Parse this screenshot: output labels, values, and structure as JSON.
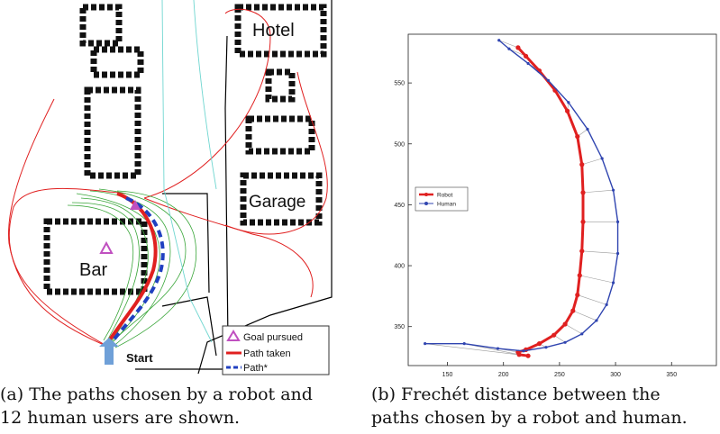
{
  "panel_a": {
    "place_labels": {
      "hotel": "Hotel",
      "garage": "Garage",
      "bar": "Bar",
      "start": "Start"
    },
    "legend": [
      {
        "label": "Goal pursued",
        "color": "#c050c0",
        "marker": "triangle"
      },
      {
        "label": "Path taken",
        "color": "#e02020",
        "marker": "line"
      },
      {
        "label": "Path*",
        "color": "#2040c0",
        "marker": "dashed"
      }
    ],
    "caption_line1": "(a)  The paths chosen by a robot and",
    "caption_line2": "12 human users are shown."
  },
  "panel_b": {
    "caption_line1": "(b)   Frechét  distance  between  the",
    "caption_line2": "paths chosen by a robot and human."
  },
  "chart_data": [
    {
      "type": "line",
      "title": "",
      "xlabel": "",
      "ylabel": "",
      "xlim": [
        115,
        390
      ],
      "ylim": [
        318,
        590
      ],
      "xticks": [
        150,
        200,
        250,
        300,
        350
      ],
      "yticks": [
        350,
        400,
        450,
        500,
        550
      ],
      "legend_position": "left",
      "series": [
        {
          "name": "Robot",
          "color": "#e02020",
          "x": [
            213,
            220,
            232,
            246,
            257,
            266,
            270,
            271,
            271,
            270,
            268,
            266,
            262,
            255,
            245,
            232,
            220,
            213,
            214,
            222
          ],
          "y": [
            579,
            572,
            560,
            544,
            527,
            506,
            483,
            460,
            436,
            412,
            392,
            376,
            363,
            352,
            343,
            336,
            331,
            329,
            327,
            326
          ]
        },
        {
          "name": "Human",
          "color": "#3045b0",
          "x": [
            196,
            205,
            222,
            240,
            258,
            275,
            288,
            298,
            302,
            302,
            298,
            292,
            283,
            270,
            255,
            238,
            218,
            195,
            165,
            130
          ],
          "y": [
            585,
            578,
            566,
            552,
            534,
            512,
            488,
            462,
            436,
            410,
            386,
            368,
            355,
            344,
            337,
            333,
            330,
            332,
            336,
            336
          ]
        }
      ]
    }
  ]
}
